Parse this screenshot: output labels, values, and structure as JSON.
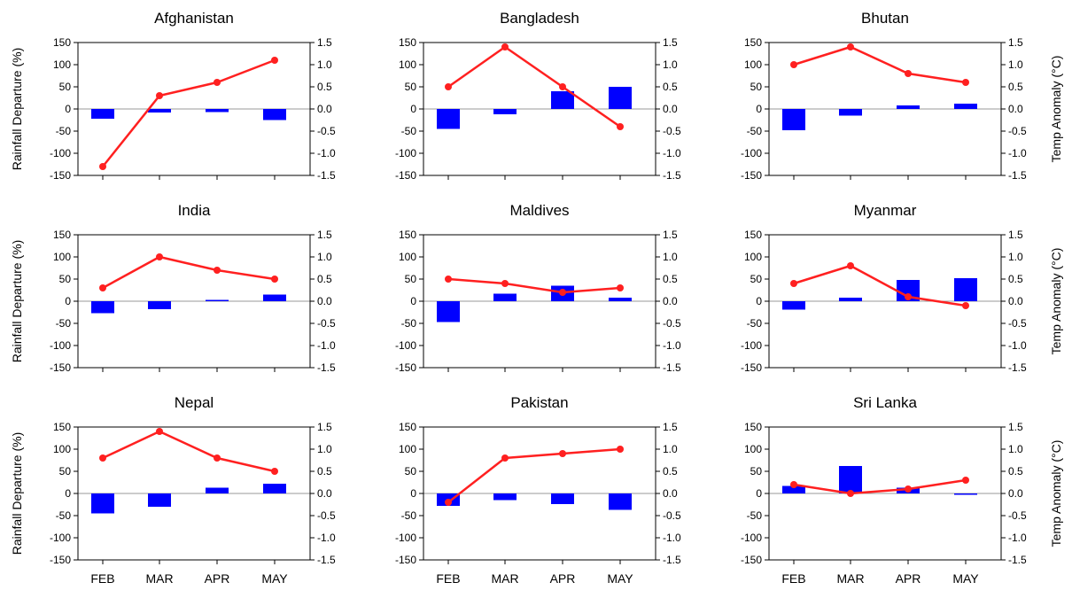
{
  "chart_data": [
    {
      "type": "bar+line",
      "title": "Afghanistan",
      "categories": [
        "FEB",
        "MAR",
        "APR",
        "MAY"
      ],
      "series": [
        {
          "name": "",
          "kind": "bar",
          "axis": "left",
          "values": [
            -22,
            -8,
            -7,
            -25
          ]
        },
        {
          "name": "",
          "kind": "line",
          "axis": "right",
          "values": [
            -1.3,
            0.3,
            0.6,
            1.1
          ]
        }
      ],
      "ylim_left": [
        -150,
        150
      ],
      "ylim_right": [
        -1.5,
        1.5
      ]
    },
    {
      "type": "bar+line",
      "title": "Bangladesh",
      "categories": [
        "FEB",
        "MAR",
        "APR",
        "MAY"
      ],
      "series": [
        {
          "name": "",
          "kind": "bar",
          "axis": "left",
          "values": [
            -45,
            -12,
            40,
            50
          ]
        },
        {
          "name": "",
          "kind": "line",
          "axis": "right",
          "values": [
            0.5,
            1.4,
            0.5,
            -0.4
          ]
        }
      ],
      "ylim_left": [
        -150,
        150
      ],
      "ylim_right": [
        -1.5,
        1.5
      ]
    },
    {
      "type": "bar+line",
      "title": "Bhutan",
      "categories": [
        "FEB",
        "MAR",
        "APR",
        "MAY"
      ],
      "series": [
        {
          "name": "",
          "kind": "bar",
          "axis": "left",
          "values": [
            -48,
            -15,
            8,
            12
          ]
        },
        {
          "name": "",
          "kind": "line",
          "axis": "right",
          "values": [
            1.0,
            1.4,
            0.8,
            0.6
          ]
        }
      ],
      "ylim_left": [
        -150,
        150
      ],
      "ylim_right": [
        -1.5,
        1.5
      ]
    },
    {
      "type": "bar+line",
      "title": "India",
      "categories": [
        "FEB",
        "MAR",
        "APR",
        "MAY"
      ],
      "series": [
        {
          "name": "",
          "kind": "bar",
          "axis": "left",
          "values": [
            -27,
            -18,
            3,
            15
          ]
        },
        {
          "name": "",
          "kind": "line",
          "axis": "right",
          "values": [
            0.3,
            1.0,
            0.7,
            0.5
          ]
        }
      ],
      "ylim_left": [
        -150,
        150
      ],
      "ylim_right": [
        -1.5,
        1.5
      ]
    },
    {
      "type": "bar+line",
      "title": "Maldives",
      "categories": [
        "FEB",
        "MAR",
        "APR",
        "MAY"
      ],
      "series": [
        {
          "name": "",
          "kind": "bar",
          "axis": "left",
          "values": [
            -47,
            17,
            35,
            8
          ]
        },
        {
          "name": "",
          "kind": "line",
          "axis": "right",
          "values": [
            0.5,
            0.4,
            0.2,
            0.3
          ]
        }
      ],
      "ylim_left": [
        -150,
        150
      ],
      "ylim_right": [
        -1.5,
        1.5
      ]
    },
    {
      "type": "bar+line",
      "title": "Myanmar",
      "categories": [
        "FEB",
        "MAR",
        "APR",
        "MAY"
      ],
      "series": [
        {
          "name": "",
          "kind": "bar",
          "axis": "left",
          "values": [
            -19,
            8,
            48,
            52
          ]
        },
        {
          "name": "",
          "kind": "line",
          "axis": "right",
          "values": [
            0.4,
            0.8,
            0.1,
            -0.1
          ]
        }
      ],
      "ylim_left": [
        -150,
        150
      ],
      "ylim_right": [
        -1.5,
        1.5
      ]
    },
    {
      "type": "bar+line",
      "title": "Nepal",
      "categories": [
        "FEB",
        "MAR",
        "APR",
        "MAY"
      ],
      "series": [
        {
          "name": "",
          "kind": "bar",
          "axis": "left",
          "values": [
            -45,
            -30,
            13,
            22
          ]
        },
        {
          "name": "",
          "kind": "line",
          "axis": "right",
          "values": [
            0.8,
            1.4,
            0.8,
            0.5
          ]
        }
      ],
      "ylim_left": [
        -150,
        150
      ],
      "ylim_right": [
        -1.5,
        1.5
      ]
    },
    {
      "type": "bar+line",
      "title": "Pakistan",
      "categories": [
        "FEB",
        "MAR",
        "APR",
        "MAY"
      ],
      "series": [
        {
          "name": "",
          "kind": "bar",
          "axis": "left",
          "values": [
            -28,
            -15,
            -24,
            -37
          ]
        },
        {
          "name": "",
          "kind": "line",
          "axis": "right",
          "values": [
            -0.2,
            0.8,
            0.9,
            1.0
          ]
        }
      ],
      "ylim_left": [
        -150,
        150
      ],
      "ylim_right": [
        -1.5,
        1.5
      ]
    },
    {
      "type": "bar+line",
      "title": "Sri Lanka",
      "categories": [
        "FEB",
        "MAR",
        "APR",
        "MAY"
      ],
      "series": [
        {
          "name": "",
          "kind": "bar",
          "axis": "left",
          "values": [
            17,
            62,
            13,
            -3
          ]
        },
        {
          "name": "",
          "kind": "line",
          "axis": "right",
          "values": [
            0.2,
            0.0,
            0.1,
            0.3
          ]
        }
      ],
      "ylim_left": [
        -150,
        150
      ],
      "ylim_right": [
        -1.5,
        1.5
      ]
    }
  ],
  "shared": {
    "ylabel_left": "Rainfall Departure (%)",
    "ylabel_right": "Temp Anomaly (°C)",
    "left_ticks": [
      150,
      100,
      50,
      0,
      -50,
      -100,
      -150
    ],
    "right_ticks": [
      "1.5",
      "1.0",
      "0.5",
      "0.0",
      "-0.5",
      "-1.0",
      "-1.5"
    ],
    "layout": "3x3 grid",
    "grid": false,
    "zero_line": true
  },
  "colors": {
    "bar": "#0000ff",
    "line": "#ff2020",
    "axis": "#000000",
    "zero_line": "#999999"
  }
}
